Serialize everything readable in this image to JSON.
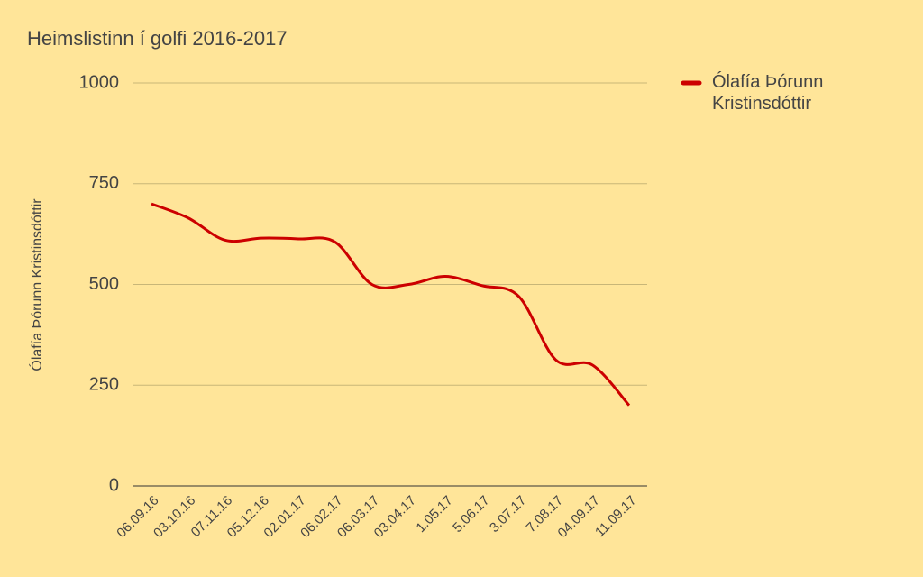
{
  "chart_data": {
    "type": "line",
    "title": "Heimslistinn í golfi 2016-2017",
    "y_label": "Ólafía Þórunn Kristinsdóttir",
    "categories": [
      "06.09.16",
      "03.10.16",
      "07.11.16",
      "05.12.16",
      "02.01.17",
      "06.02.17",
      "06.03.17",
      "03.04.17",
      "1.05.17",
      "5.06.17",
      "3.07.17",
      "7.08.17",
      "04.09.17",
      "11.09.17"
    ],
    "series": [
      {
        "name": "Ólafía Þórunn Kristinsdóttir",
        "color": "#cc0000",
        "values": [
          700,
          665,
          610,
          615,
          613,
          605,
          500,
          500,
          520,
          497,
          470,
          313,
          300,
          200
        ]
      }
    ],
    "ylim": [
      0,
      1000
    ],
    "yticks": [
      0,
      250,
      500,
      750,
      1000
    ],
    "grid": true,
    "legend": "top-right"
  }
}
